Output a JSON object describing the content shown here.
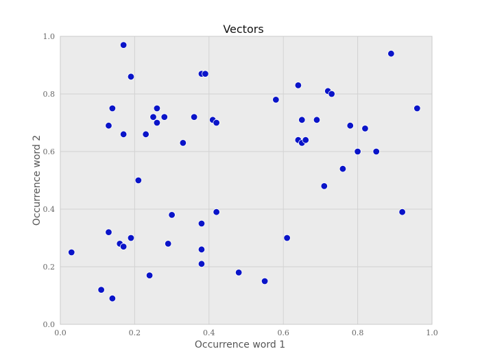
{
  "chart_data": {
    "type": "scatter",
    "title": "Vectors",
    "xlabel": "Occurrence word 1",
    "ylabel": "Occurrence word 2",
    "xlim": [
      0.0,
      1.0
    ],
    "ylim": [
      0.0,
      1.0
    ],
    "xticks": [
      "0.0",
      "0.2",
      "0.4",
      "0.6",
      "0.8",
      "1.0"
    ],
    "yticks": [
      "0.0",
      "0.2",
      "0.4",
      "0.6",
      "0.8",
      "1.0"
    ],
    "grid": true,
    "background": "#ebebeb",
    "grid_color": "#d2d2d2",
    "marker_color": "#0a14c8",
    "marker_edge": "#ffffff",
    "series": [
      {
        "points": [
          [
            0.03,
            0.25
          ],
          [
            0.11,
            0.12
          ],
          [
            0.13,
            0.32
          ],
          [
            0.14,
            0.09
          ],
          [
            0.16,
            0.28
          ],
          [
            0.17,
            0.27
          ],
          [
            0.19,
            0.3
          ],
          [
            0.24,
            0.17
          ],
          [
            0.29,
            0.28
          ],
          [
            0.3,
            0.38
          ],
          [
            0.3,
            0.38
          ],
          [
            0.38,
            0.21
          ],
          [
            0.38,
            0.35
          ],
          [
            0.38,
            0.26
          ],
          [
            0.42,
            0.39
          ],
          [
            0.48,
            0.18
          ],
          [
            0.55,
            0.15
          ],
          [
            0.61,
            0.3
          ],
          [
            0.17,
            0.97
          ],
          [
            0.19,
            0.86
          ],
          [
            0.13,
            0.69
          ],
          [
            0.14,
            0.75
          ],
          [
            0.17,
            0.66
          ],
          [
            0.21,
            0.5
          ],
          [
            0.23,
            0.66
          ],
          [
            0.25,
            0.72
          ],
          [
            0.26,
            0.75
          ],
          [
            0.26,
            0.7
          ],
          [
            0.28,
            0.72
          ],
          [
            0.33,
            0.63
          ],
          [
            0.36,
            0.72
          ],
          [
            0.38,
            0.87
          ],
          [
            0.39,
            0.87
          ],
          [
            0.41,
            0.71
          ],
          [
            0.42,
            0.7
          ],
          [
            0.58,
            0.78
          ],
          [
            0.64,
            0.83
          ],
          [
            0.64,
            0.64
          ],
          [
            0.65,
            0.63
          ],
          [
            0.65,
            0.71
          ],
          [
            0.66,
            0.64
          ],
          [
            0.69,
            0.71
          ],
          [
            0.71,
            0.48
          ],
          [
            0.72,
            0.81
          ],
          [
            0.73,
            0.8
          ],
          [
            0.76,
            0.54
          ],
          [
            0.78,
            0.69
          ],
          [
            0.8,
            0.6
          ],
          [
            0.82,
            0.68
          ],
          [
            0.85,
            0.6
          ],
          [
            0.89,
            0.94
          ],
          [
            0.92,
            0.39
          ],
          [
            0.96,
            0.75
          ]
        ]
      }
    ]
  }
}
